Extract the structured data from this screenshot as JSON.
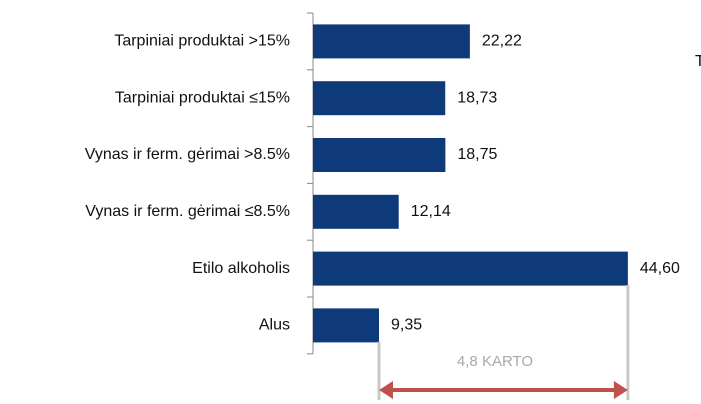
{
  "chart_data": {
    "type": "bar",
    "orientation": "horizontal",
    "categories": [
      "Tarpiniai produktai >15%",
      "Tarpiniai produktai ≤15%",
      "Vynas ir ferm. gėrimai >8.5%",
      "Vynas ir ferm. gėrimai ≤8.5%",
      "Etilo alkoholis",
      "Alus"
    ],
    "values": [
      22.22,
      18.73,
      18.75,
      12.14,
      44.6,
      9.35
    ],
    "value_labels": [
      "22,22",
      "18,73",
      "18,75",
      "12,14",
      "44,60",
      "9,35"
    ],
    "color": "#0e3a7a",
    "annotation": "4,8 KARTO",
    "annotation_color": "#c0504d",
    "side_text": "T"
  }
}
